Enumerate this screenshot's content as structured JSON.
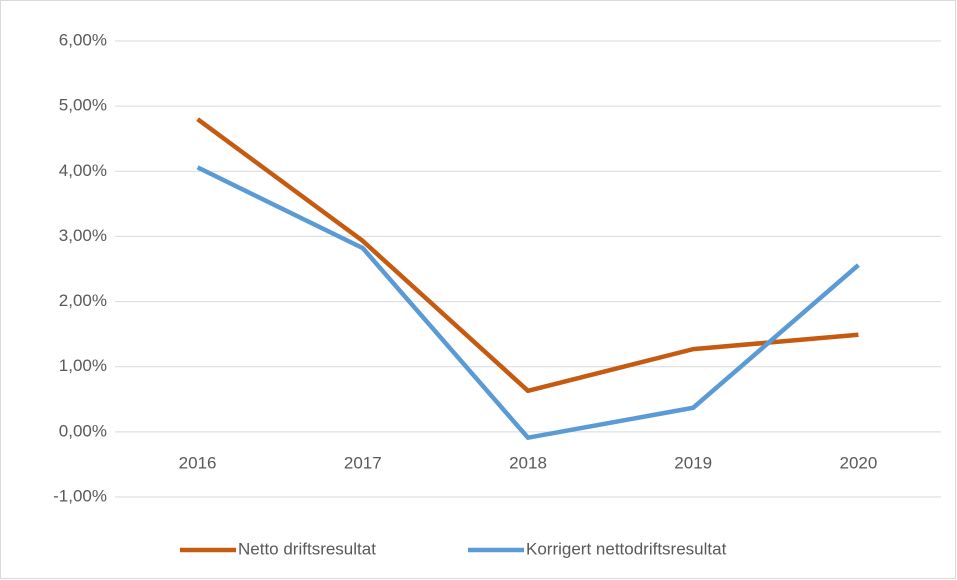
{
  "chart_data": {
    "type": "line",
    "categories": [
      "2016",
      "2017",
      "2018",
      "2019",
      "2020"
    ],
    "series": [
      {
        "name": "Netto driftsresultat",
        "color": "#c55a11",
        "values": [
          4.8,
          2.93,
          0.63,
          1.27,
          1.49
        ]
      },
      {
        "name": "Korrigert nettodriftsresultat",
        "color": "#5b9bd5",
        "values": [
          4.06,
          2.82,
          -0.09,
          0.37,
          2.56
        ]
      }
    ],
    "ylim": [
      -1,
      6
    ],
    "yticks": [
      {
        "value": -1,
        "label": "-1,00%"
      },
      {
        "value": 0,
        "label": "0,00%"
      },
      {
        "value": 1,
        "label": "1,00%"
      },
      {
        "value": 2,
        "label": "2,00%"
      },
      {
        "value": 3,
        "label": "3,00%"
      },
      {
        "value": 4,
        "label": "4,00%"
      },
      {
        "value": 5,
        "label": "5,00%"
      },
      {
        "value": 6,
        "label": "6,00%"
      }
    ],
    "grid": true,
    "legend": "bottom"
  }
}
